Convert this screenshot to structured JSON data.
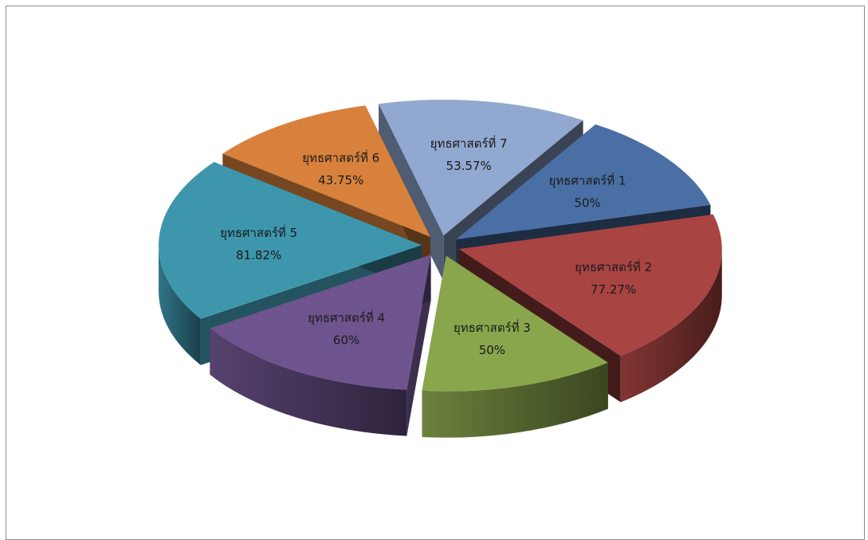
{
  "chart_data": {
    "type": "pie",
    "style": "3d-exploded",
    "legend": "none",
    "slices": [
      {
        "label": "ยุทธศาสตร์ที่ 1",
        "value": 50,
        "value_label": "50%",
        "color": "#4a6fa5"
      },
      {
        "label": "ยุทธศาสตร์ที่ 2",
        "value": 77.27,
        "value_label": "77.27%",
        "color": "#a84442"
      },
      {
        "label": "ยุทธศาสตร์ที่ 3",
        "value": 50,
        "value_label": "50%",
        "color": "#8aa64d"
      },
      {
        "label": "ยุทธศาสตร์ที่ 4",
        "value": 60,
        "value_label": "60%",
        "color": "#6e548e"
      },
      {
        "label": "ยุทธศาสตร์ที่ 5",
        "value": 81.82,
        "value_label": "81.82%",
        "color": "#3e96ad"
      },
      {
        "label": "ยุทธศาสตร์ที่ 6",
        "value": 43.75,
        "value_label": "43.75%",
        "color": "#d8813c"
      },
      {
        "label": "ยุทธศาสตร์ที่ 7",
        "value": 53.57,
        "value_label": "53.57%",
        "color": "#91a8d0"
      }
    ]
  }
}
